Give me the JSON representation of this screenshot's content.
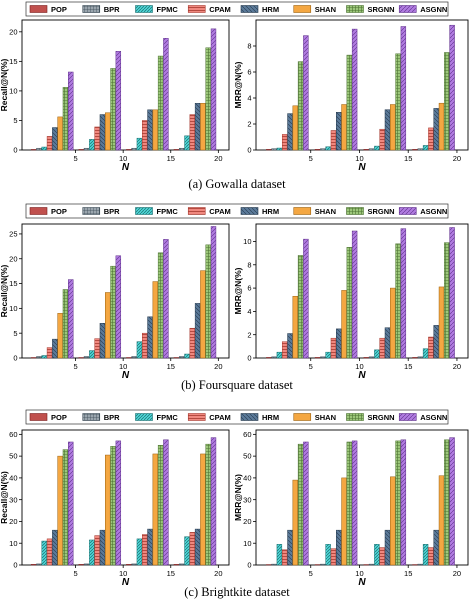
{
  "legend": {
    "methods": [
      "POP",
      "BPR",
      "FPMC",
      "CPAM",
      "HRM",
      "SHAN",
      "SRGNN",
      "ASGNN"
    ],
    "colors": {
      "POP": {
        "fill": "#c0504d",
        "stroke": "#7a1f1f"
      },
      "BPR": {
        "fill": "#9aa5ad",
        "stroke": "#3b4a55"
      },
      "FPMC": {
        "fill": "#4dd6d6",
        "stroke": "#1c6f70"
      },
      "CPAM": {
        "fill": "#f0887f",
        "stroke": "#a63a30"
      },
      "HRM": {
        "fill": "#5b7a99",
        "stroke": "#24384c"
      },
      "SHAN": {
        "fill": "#f4a742",
        "stroke": "#9a5f0d"
      },
      "SRGNN": {
        "fill": "#9cc77a",
        "stroke": "#4d7332"
      },
      "ASGNN": {
        "fill": "#b07be0",
        "stroke": "#5e2f8a"
      }
    }
  },
  "sections": [
    {
      "caption": "(a)  Gowalla dataset"
    },
    {
      "caption": "(b)  Foursquare dataset"
    },
    {
      "caption": "(c)  Brightkite dataset"
    }
  ],
  "chart_data": [
    {
      "type": "bar",
      "panel": "gowalla-recall",
      "categories": [
        "5",
        "10",
        "15",
        "20"
      ],
      "xlabel": "N",
      "ylabel": "Recall@N(%)",
      "ylim": [
        0,
        22
      ],
      "yticks": [
        0,
        5,
        10,
        15,
        20
      ],
      "series": [
        {
          "name": "POP",
          "values": [
            0.1,
            0.1,
            0.1,
            0.1
          ]
        },
        {
          "name": "BPR",
          "values": [
            0.3,
            0.3,
            0.3,
            0.3
          ]
        },
        {
          "name": "FPMC",
          "values": [
            0.5,
            1.8,
            2.0,
            2.4
          ]
        },
        {
          "name": "CPAM",
          "values": [
            2.3,
            3.9,
            5.0,
            6.0
          ]
        },
        {
          "name": "HRM",
          "values": [
            3.8,
            6.0,
            6.8,
            7.9
          ]
        },
        {
          "name": "SHAN",
          "values": [
            5.6,
            6.3,
            6.8,
            7.9
          ]
        },
        {
          "name": "SRGNN",
          "values": [
            10.6,
            13.8,
            15.9,
            17.3
          ]
        },
        {
          "name": "ASGNN",
          "values": [
            13.2,
            16.7,
            18.9,
            20.5
          ]
        }
      ]
    },
    {
      "type": "bar",
      "panel": "gowalla-mrr",
      "categories": [
        "5",
        "10",
        "15",
        "20"
      ],
      "xlabel": "N",
      "ylabel": "MRR@N(%)",
      "ylim": [
        0,
        10
      ],
      "yticks": [
        0,
        2,
        4,
        6,
        8
      ],
      "series": [
        {
          "name": "POP",
          "values": [
            0.05,
            0.05,
            0.05,
            0.05
          ]
        },
        {
          "name": "BPR",
          "values": [
            0.1,
            0.1,
            0.1,
            0.1
          ]
        },
        {
          "name": "FPMC",
          "values": [
            0.15,
            0.25,
            0.3,
            0.35
          ]
        },
        {
          "name": "CPAM",
          "values": [
            1.2,
            1.5,
            1.6,
            1.7
          ]
        },
        {
          "name": "HRM",
          "values": [
            2.8,
            2.9,
            3.1,
            3.2
          ]
        },
        {
          "name": "SHAN",
          "values": [
            3.4,
            3.5,
            3.5,
            3.6
          ]
        },
        {
          "name": "SRGNN",
          "values": [
            6.8,
            7.3,
            7.4,
            7.5
          ]
        },
        {
          "name": "ASGNN",
          "values": [
            8.8,
            9.3,
            9.5,
            9.6
          ]
        }
      ]
    },
    {
      "type": "bar",
      "panel": "foursquare-recall",
      "categories": [
        "5",
        "10",
        "15",
        "20"
      ],
      "xlabel": "N",
      "ylabel": "Recall@N(%)",
      "ylim": [
        0,
        27
      ],
      "yticks": [
        0,
        5,
        10,
        15,
        20,
        25
      ],
      "series": [
        {
          "name": "POP",
          "values": [
            0.1,
            0.1,
            0.1,
            0.1
          ]
        },
        {
          "name": "BPR",
          "values": [
            0.3,
            0.3,
            0.3,
            0.3
          ]
        },
        {
          "name": "FPMC",
          "values": [
            0.5,
            1.5,
            3.3,
            0.8
          ]
        },
        {
          "name": "CPAM",
          "values": [
            2.1,
            3.9,
            5.0,
            6.0
          ]
        },
        {
          "name": "HRM",
          "values": [
            3.8,
            7.0,
            8.3,
            11.0
          ]
        },
        {
          "name": "SHAN",
          "values": [
            9.0,
            13.2,
            15.4,
            17.6
          ]
        },
        {
          "name": "SRGNN",
          "values": [
            13.8,
            18.5,
            21.2,
            22.8
          ]
        },
        {
          "name": "ASGNN",
          "values": [
            15.8,
            20.6,
            23.9,
            26.5
          ]
        }
      ]
    },
    {
      "type": "bar",
      "panel": "foursquare-mrr",
      "categories": [
        "5",
        "10",
        "15",
        "20"
      ],
      "xlabel": "N",
      "ylabel": "MRR@N(%)",
      "ylim": [
        0,
        11.5
      ],
      "yticks": [
        0,
        2,
        4,
        6,
        8,
        10
      ],
      "series": [
        {
          "name": "POP",
          "values": [
            0.05,
            0.05,
            0.05,
            0.05
          ]
        },
        {
          "name": "BPR",
          "values": [
            0.1,
            0.1,
            0.1,
            0.1
          ]
        },
        {
          "name": "FPMC",
          "values": [
            0.5,
            0.5,
            0.7,
            0.8
          ]
        },
        {
          "name": "CPAM",
          "values": [
            1.4,
            1.7,
            1.7,
            1.8
          ]
        },
        {
          "name": "HRM",
          "values": [
            2.1,
            2.5,
            2.6,
            2.8
          ]
        },
        {
          "name": "SHAN",
          "values": [
            5.3,
            5.8,
            6.0,
            6.1
          ]
        },
        {
          "name": "SRGNN",
          "values": [
            8.8,
            9.5,
            9.8,
            9.9
          ]
        },
        {
          "name": "ASGNN",
          "values": [
            10.2,
            10.9,
            11.1,
            11.2
          ]
        }
      ]
    },
    {
      "type": "bar",
      "panel": "brightkite-recall",
      "categories": [
        "5",
        "10",
        "15",
        "20"
      ],
      "xlabel": "N",
      "ylabel": "Recall@N(%)",
      "ylim": [
        0,
        62
      ],
      "yticks": [
        0,
        10,
        20,
        30,
        40,
        50,
        60
      ],
      "series": [
        {
          "name": "POP",
          "values": [
            0.3,
            0.3,
            0.3,
            0.3
          ]
        },
        {
          "name": "BPR",
          "values": [
            0.5,
            0.5,
            0.5,
            0.5
          ]
        },
        {
          "name": "FPMC",
          "values": [
            11.0,
            11.5,
            12.0,
            13.0
          ]
        },
        {
          "name": "CPAM",
          "values": [
            12.0,
            13.5,
            14.0,
            15.0
          ]
        },
        {
          "name": "HRM",
          "values": [
            16.0,
            16.0,
            16.5,
            16.5
          ]
        },
        {
          "name": "SHAN",
          "values": [
            50.0,
            50.5,
            51.0,
            51.0
          ]
        },
        {
          "name": "SRGNN",
          "values": [
            53.0,
            54.5,
            55.0,
            55.5
          ]
        },
        {
          "name": "ASGNN",
          "values": [
            56.5,
            57.0,
            57.5,
            58.5
          ]
        }
      ]
    },
    {
      "type": "bar",
      "panel": "brightkite-mrr",
      "categories": [
        "5",
        "10",
        "15",
        "20"
      ],
      "xlabel": "N",
      "ylabel": "MRR@N(%)",
      "ylim": [
        0,
        62
      ],
      "yticks": [
        0,
        10,
        20,
        30,
        40,
        50,
        60
      ],
      "series": [
        {
          "name": "POP",
          "values": [
            0.2,
            0.2,
            0.2,
            0.2
          ]
        },
        {
          "name": "BPR",
          "values": [
            0.4,
            0.4,
            0.4,
            0.4
          ]
        },
        {
          "name": "FPMC",
          "values": [
            9.5,
            9.5,
            9.5,
            9.5
          ]
        },
        {
          "name": "CPAM",
          "values": [
            7.0,
            7.5,
            8.0,
            8.0
          ]
        },
        {
          "name": "HRM",
          "values": [
            16.0,
            16.0,
            16.0,
            16.0
          ]
        },
        {
          "name": "SHAN",
          "values": [
            39.0,
            40.0,
            40.5,
            41.0
          ]
        },
        {
          "name": "SRGNN",
          "values": [
            55.5,
            56.5,
            57.0,
            57.5
          ]
        },
        {
          "name": "ASGNN",
          "values": [
            56.5,
            57.0,
            57.5,
            58.5
          ]
        }
      ]
    }
  ]
}
